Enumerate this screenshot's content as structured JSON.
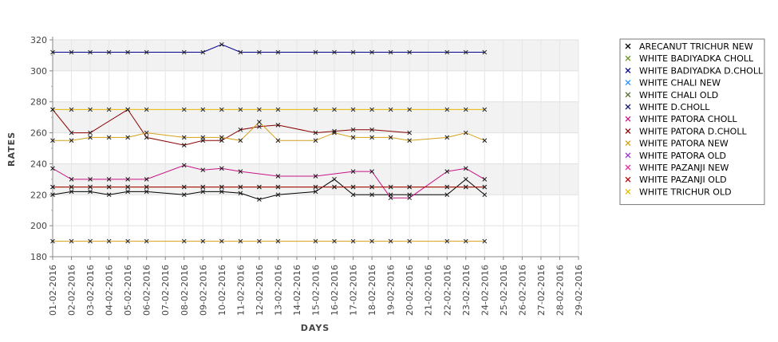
{
  "chart_data": {
    "type": "line",
    "xlabel": "DAYS",
    "ylabel": "RATES",
    "ylim": [
      180,
      320
    ],
    "yticks": [
      180,
      200,
      220,
      240,
      260,
      280,
      300,
      320
    ],
    "grid": true,
    "legend_position": "right",
    "categories": [
      "01-02-2016",
      "02-02-2016",
      "03-02-2016",
      "04-02-2016",
      "05-02-2016",
      "06-02-2016",
      "07-02-2016",
      "08-02-2016",
      "09-02-2016",
      "10-02-2016",
      "11-02-2016",
      "12-02-2016",
      "13-02-2016",
      "14-02-2016",
      "15-02-2016",
      "16-02-2016",
      "17-02-2016",
      "18-02-2016",
      "19-02-2016",
      "20-02-2016",
      "21-02-2016",
      "22-02-2016",
      "23-02-2016",
      "24-02-2016",
      "25-02-2016",
      "26-02-2016",
      "27-02-2016",
      "28-02-2016",
      "29-02-2016"
    ],
    "series": [
      {
        "name": "ARECANUT TRICHUR NEW",
        "color": "#000000",
        "values": [
          220,
          222,
          222,
          220,
          222,
          222,
          null,
          220,
          222,
          222,
          221,
          217,
          220,
          null,
          222,
          230,
          220,
          220,
          220,
          220,
          null,
          220,
          230,
          220,
          null,
          null,
          null,
          null,
          null
        ]
      },
      {
        "name": "WHITE BADIYADKA CHOLL",
        "color": "#6b8e23",
        "values": [
          225,
          225,
          225,
          225,
          225,
          225,
          null,
          225,
          225,
          225,
          225,
          225,
          225,
          null,
          225,
          225,
          225,
          225,
          225,
          225,
          null,
          225,
          225,
          225,
          null,
          null,
          null,
          null,
          null
        ]
      },
      {
        "name": "WHITE BADIYADKA D.CHOLL",
        "color": "#00008b",
        "values": [
          312,
          312,
          312,
          312,
          312,
          312,
          null,
          312,
          312,
          317,
          312,
          312,
          312,
          null,
          312,
          312,
          312,
          312,
          312,
          312,
          null,
          312,
          312,
          312,
          null,
          null,
          null,
          null,
          null
        ]
      },
      {
        "name": "WHITE CHALI NEW",
        "color": "#1e90ff",
        "values": [
          null,
          null,
          null,
          null,
          null,
          null,
          null,
          null,
          null,
          null,
          null,
          null,
          null,
          null,
          null,
          null,
          null,
          null,
          null,
          null,
          null,
          null,
          null,
          null,
          null,
          null,
          null,
          null,
          null
        ]
      },
      {
        "name": "WHITE CHALI OLD",
        "color": "#556b2f",
        "values": [
          null,
          null,
          null,
          null,
          null,
          null,
          null,
          null,
          null,
          null,
          null,
          null,
          null,
          null,
          null,
          null,
          null,
          null,
          null,
          null,
          null,
          null,
          null,
          null,
          null,
          null,
          null,
          null,
          null
        ]
      },
      {
        "name": "WHITE D.CHOLL",
        "color": "#191970",
        "values": [
          null,
          null,
          null,
          null,
          null,
          null,
          null,
          null,
          null,
          null,
          null,
          null,
          null,
          null,
          null,
          null,
          null,
          null,
          null,
          null,
          null,
          null,
          null,
          null,
          null,
          null,
          null,
          null,
          null
        ]
      },
      {
        "name": "WHITE PATORA CHOLL",
        "color": "#c71585",
        "values": [
          237,
          230,
          230,
          230,
          230,
          230,
          null,
          239,
          236,
          237,
          235,
          null,
          232,
          null,
          232,
          null,
          235,
          235,
          218,
          218,
          null,
          235,
          237,
          230,
          null,
          null,
          null,
          null,
          null
        ]
      },
      {
        "name": "WHITE PATORA D.CHOLL",
        "color": "#8b0000",
        "values": [
          275,
          260,
          260,
          null,
          275,
          257,
          null,
          252,
          255,
          255,
          262,
          264,
          265,
          null,
          260,
          261,
          262,
          262,
          null,
          260,
          null,
          null,
          null,
          null,
          null,
          null,
          null,
          null,
          null
        ]
      },
      {
        "name": "WHITE PATORA NEW",
        "color": "#d4a017",
        "values": [
          255,
          255,
          257,
          257,
          257,
          260,
          null,
          257,
          257,
          257,
          255,
          267,
          255,
          null,
          255,
          260,
          257,
          257,
          257,
          255,
          null,
          257,
          260,
          255,
          null,
          null,
          null,
          null,
          null
        ]
      },
      {
        "name": "WHITE PATORA OLD",
        "color": "#9932cc",
        "values": [
          null,
          null,
          null,
          null,
          null,
          null,
          null,
          null,
          null,
          null,
          null,
          null,
          null,
          null,
          null,
          null,
          null,
          null,
          null,
          null,
          null,
          null,
          null,
          null,
          null,
          null,
          null,
          null,
          null
        ]
      },
      {
        "name": "WHITE PAZANJI NEW",
        "color": "#e0309e",
        "values": [
          null,
          null,
          null,
          null,
          null,
          null,
          null,
          null,
          null,
          null,
          null,
          null,
          null,
          null,
          null,
          null,
          null,
          null,
          null,
          null,
          null,
          null,
          null,
          null,
          null,
          null,
          null,
          null,
          null
        ]
      },
      {
        "name": "WHITE PAZANJI OLD",
        "color": "#b00000",
        "values": [
          225,
          225,
          225,
          225,
          225,
          225,
          null,
          225,
          225,
          225,
          225,
          225,
          225,
          null,
          225,
          225,
          225,
          225,
          225,
          225,
          null,
          225,
          225,
          225,
          null,
          null,
          null,
          null,
          null
        ]
      },
      {
        "name": "WHITE TRICHUR OLD",
        "color": "#e6b800",
        "values": [
          275,
          275,
          275,
          275,
          275,
          275,
          null,
          275,
          275,
          275,
          275,
          275,
          275,
          null,
          275,
          275,
          275,
          275,
          275,
          275,
          null,
          275,
          275,
          275,
          null,
          null,
          null,
          null,
          null
        ]
      },
      {
        "name": "",
        "color": "#d4a017",
        "in_legend": false,
        "values": [
          190,
          190,
          190,
          190,
          190,
          190,
          null,
          190,
          190,
          190,
          190,
          190,
          190,
          null,
          190,
          190,
          190,
          190,
          190,
          190,
          null,
          190,
          190,
          190,
          null,
          null,
          null,
          null,
          null
        ]
      }
    ]
  }
}
